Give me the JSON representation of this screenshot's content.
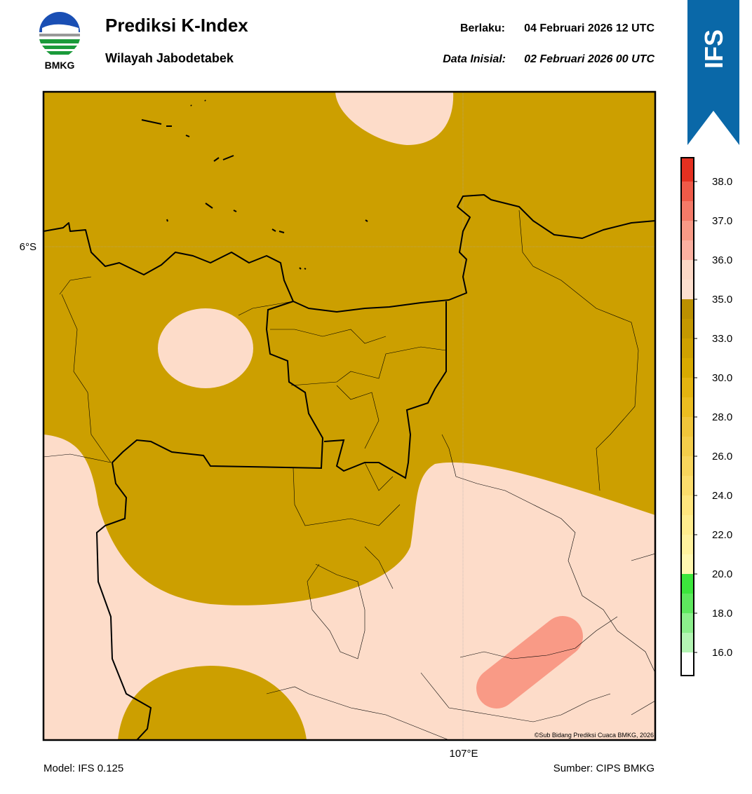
{
  "header": {
    "title": "Prediksi K-Index",
    "subtitle": "Wilayah Jabodetabek",
    "valid_label": "Berlaku:",
    "valid_time": "04 Februari 2026 12 UTC",
    "init_label": "Data Inisial:",
    "init_time": "02 Februari 2026 00 UTC",
    "logo_text": "BMKG",
    "badge": "IFS"
  },
  "map": {
    "lat_label": "6°S",
    "lon_label": "107°E",
    "credit": "©Sub Bidang Prediksi Cuaca BMKG, 2026",
    "base_color": "#cc9f00",
    "low_color": "#fddcc9",
    "high_color": "#f99a86"
  },
  "colorbar": {
    "ticks": [
      {
        "value": 16,
        "label": "16.0"
      },
      {
        "value": 18,
        "label": "18.0"
      },
      {
        "value": 20,
        "label": "20.0"
      },
      {
        "value": 22,
        "label": "22.0"
      },
      {
        "value": 24,
        "label": "24.0"
      },
      {
        "value": 26,
        "label": "26.0"
      },
      {
        "value": 28,
        "label": "28.0"
      },
      {
        "value": 30,
        "label": "30.0"
      },
      {
        "value": 33,
        "label": "33.0"
      },
      {
        "value": 35,
        "label": "35.0"
      },
      {
        "value": 36,
        "label": "36.0"
      },
      {
        "value": 37,
        "label": "37.0"
      },
      {
        "value": 38,
        "label": "38.0"
      }
    ],
    "colors": [
      "#ffffff",
      "#b4f5b4",
      "#8cef8c",
      "#5ee85e",
      "#3ce63c",
      "#fff7b0",
      "#fff29e",
      "#ffed8e",
      "#ffe67e",
      "#fcdd6c",
      "#f8d55c",
      "#f4cd4a",
      "#f0c53a",
      "#ebbd20",
      "#e4b410",
      "#d8aa00",
      "#cfa100",
      "#c49800",
      "#bb9000",
      "#fde0cf",
      "#fcd8c6",
      "#fbb0a0",
      "#f99a86",
      "#f47a68",
      "#ef5a48",
      "#e53020"
    ]
  },
  "footer": {
    "model": "Model: IFS 0.125",
    "source": "Sumber: CIPS BMKG"
  }
}
